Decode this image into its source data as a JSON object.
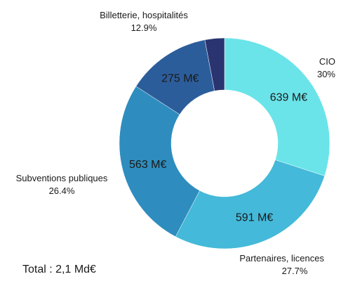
{
  "chart_data": {
    "type": "pie",
    "donut": true,
    "total_label": "Total : 2,1 Md€",
    "slices": [
      {
        "name": "CIO",
        "percent_label": "30%",
        "value_label": "639 M€",
        "value": 639,
        "share": 30.0,
        "color": "#6ae4e9"
      },
      {
        "name": "Partenaires, licences",
        "percent_label": "27.7%",
        "value_label": "591 M€",
        "value": 591,
        "share": 27.7,
        "color": "#44b9d9"
      },
      {
        "name": "Subventions publiques",
        "percent_label": "26.4%",
        "value_label": "563 M€",
        "value": 563,
        "share": 26.4,
        "color": "#2e8dbe"
      },
      {
        "name": "Billetterie, hospitalités",
        "percent_label": "12.9%",
        "value_label": "275 M€",
        "value": 275,
        "share": 12.9,
        "color": "#2c5d9b"
      },
      {
        "name": "",
        "percent_label": "",
        "value_label": "",
        "value": 64,
        "share": 3.0,
        "color": "#2a3470"
      }
    ]
  }
}
